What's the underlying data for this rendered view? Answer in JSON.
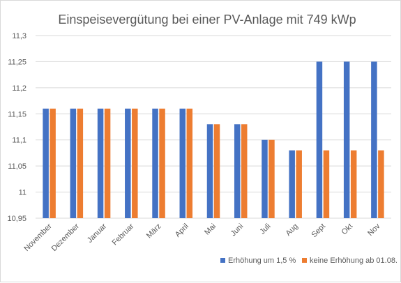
{
  "chart_data": {
    "type": "bar",
    "title": "Einspeisevergütung bei einer  PV-Anlage mit 749 kWp",
    "xlabel": "",
    "ylabel": "",
    "categories": [
      "November",
      "Dezember",
      "Januar",
      "Februar",
      "März",
      "April",
      "Mai",
      "Juni",
      "Juli",
      "Aug",
      "Sept",
      "Okt",
      "Nov"
    ],
    "series": [
      {
        "name": "Erhöhung um 1,5 %",
        "color": "#4472c4",
        "values": [
          11.16,
          11.16,
          11.16,
          11.16,
          11.16,
          11.16,
          11.13,
          11.13,
          11.1,
          11.08,
          11.25,
          11.25,
          11.25
        ]
      },
      {
        "name": "keine Erhöhung ab 01.08.",
        "color": "#ed7d31",
        "values": [
          11.16,
          11.16,
          11.16,
          11.16,
          11.16,
          11.16,
          11.13,
          11.13,
          11.1,
          11.08,
          11.08,
          11.08,
          11.08
        ]
      }
    ],
    "ylim": [
      10.95,
      11.3
    ],
    "yticks": [
      "11,3",
      "11,25",
      "11,2",
      "11,15",
      "11,1",
      "11,05",
      "11",
      "10,95"
    ],
    "ytick_values": [
      11.3,
      11.25,
      11.2,
      11.15,
      11.1,
      11.05,
      11.0,
      10.95
    ],
    "grid": true,
    "legend_position": "bottom-right"
  }
}
